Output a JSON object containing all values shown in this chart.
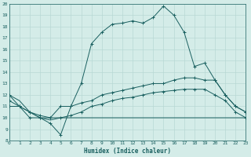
{
  "xlabel": "Humidex (Indice chaleur)",
  "xlim": [
    0,
    23
  ],
  "ylim": [
    8,
    20
  ],
  "yticks": [
    8,
    9,
    10,
    11,
    12,
    13,
    14,
    15,
    16,
    17,
    18,
    19,
    20
  ],
  "xticks": [
    0,
    1,
    2,
    3,
    4,
    5,
    6,
    7,
    8,
    9,
    10,
    11,
    12,
    13,
    14,
    15,
    16,
    17,
    18,
    19,
    20,
    21,
    22,
    23
  ],
  "bg_color": "#d4ece8",
  "line_color": "#1a6060",
  "grid_color": "#b8d8d4",
  "lines": [
    {
      "x": [
        0,
        1,
        2,
        3,
        4,
        5,
        6,
        7,
        8,
        9,
        10,
        11,
        12,
        13,
        14,
        15,
        16,
        17,
        18,
        19,
        20,
        21,
        22,
        23
      ],
      "y": [
        12,
        11,
        10,
        10,
        9.5,
        8.5,
        11.0,
        13.0,
        16.5,
        17.5,
        18.2,
        18.3,
        18.5,
        18.3,
        18.8,
        19.8,
        19.0,
        17.5,
        14.5,
        14.8,
        13.3,
        12.0,
        11.0,
        10.5
      ],
      "marker": true
    },
    {
      "x": [
        0,
        1,
        2,
        3,
        4,
        5,
        6,
        7,
        8,
        9,
        10,
        11,
        12,
        13,
        14,
        15,
        16,
        17,
        18,
        19,
        20,
        21,
        22,
        23
      ],
      "y": [
        11,
        11,
        10.5,
        10,
        10,
        11,
        11,
        11.3,
        11.5,
        12.0,
        12.2,
        12.4,
        12.6,
        12.8,
        13.0,
        13.0,
        13.3,
        13.5,
        13.5,
        13.3,
        13.3,
        12.0,
        11.0,
        10.5
      ],
      "marker": true
    },
    {
      "x": [
        0,
        1,
        2,
        3,
        4,
        5,
        6,
        7,
        8,
        9,
        10,
        11,
        12,
        13,
        14,
        15,
        16,
        17,
        18,
        19,
        20,
        21,
        22,
        23
      ],
      "y": [
        11.5,
        11,
        10.5,
        10.2,
        10,
        10,
        10.2,
        10.5,
        11.0,
        11.2,
        11.5,
        11.7,
        11.8,
        12.0,
        12.2,
        12.3,
        12.4,
        12.5,
        12.5,
        12.5,
        12.0,
        11.5,
        10.5,
        10.0
      ],
      "marker": true
    },
    {
      "x": [
        0,
        1,
        2,
        3,
        4,
        5,
        6,
        7,
        8,
        9,
        10,
        11,
        12,
        13,
        14,
        15,
        16,
        17,
        18,
        19,
        20,
        21,
        22,
        23
      ],
      "y": [
        12,
        11.5,
        10.5,
        10.0,
        9.8,
        10.0,
        10.0,
        10.0,
        10.0,
        10.0,
        10.0,
        10.0,
        10.0,
        10.0,
        10.0,
        10.0,
        10.0,
        10.0,
        10.0,
        10.0,
        10.0,
        10.0,
        10.0,
        10.0
      ],
      "marker": false
    }
  ]
}
